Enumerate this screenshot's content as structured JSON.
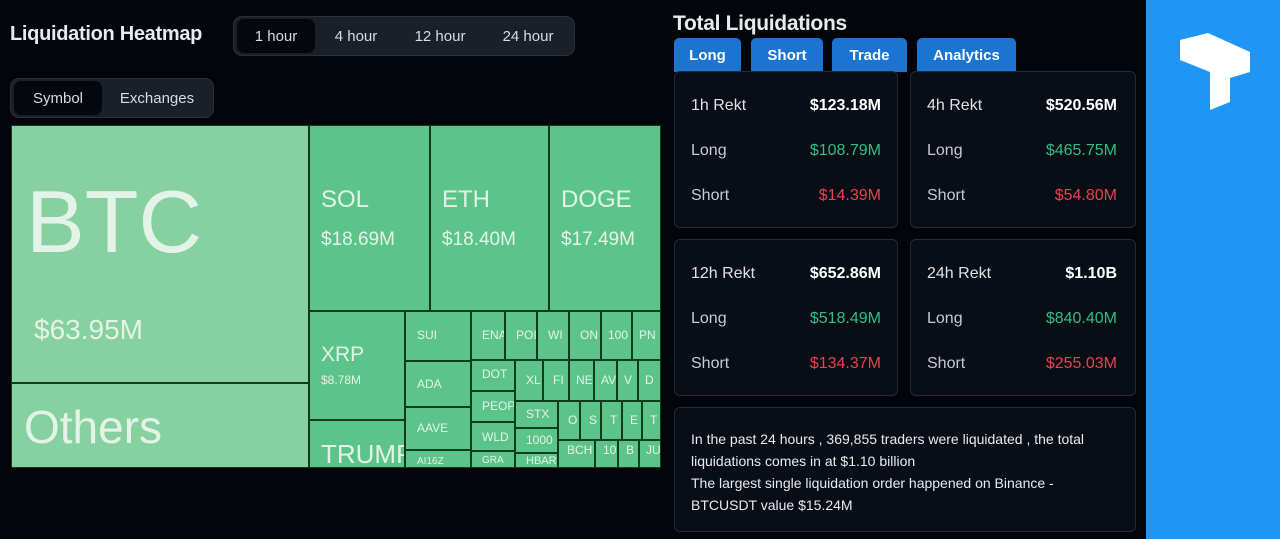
{
  "heatmap": {
    "title": "Liquidation Heatmap",
    "time_tabs": [
      "1 hour",
      "4 hour",
      "12 hour",
      "24 hour"
    ],
    "view_tabs": [
      "Symbol",
      "Exchanges"
    ],
    "tiles": [
      {
        "label": "BTC",
        "value": "$63.95M"
      },
      {
        "label": "Others"
      },
      {
        "label": "SOL",
        "value": "$18.69M"
      },
      {
        "label": "ETH",
        "value": "$18.40M"
      },
      {
        "label": "DOGE",
        "value": "$17.49M"
      },
      {
        "label": "XRP",
        "value": "$8.78M"
      },
      {
        "label": "TRUMP"
      },
      {
        "label": "SUI"
      },
      {
        "label": "ADA"
      },
      {
        "label": "AAVE"
      },
      {
        "label": "AI16Z"
      },
      {
        "label": "ENA"
      },
      {
        "label": "POI"
      },
      {
        "label": "WI"
      },
      {
        "label": "ON"
      },
      {
        "label": "100"
      },
      {
        "label": "PN"
      },
      {
        "label": "DOT"
      },
      {
        "label": "PEOP"
      },
      {
        "label": "WLD"
      },
      {
        "label": "GRA"
      },
      {
        "label": "XL"
      },
      {
        "label": "FI"
      },
      {
        "label": "NE"
      },
      {
        "label": "AV"
      },
      {
        "label": "V"
      },
      {
        "label": "D"
      },
      {
        "label": "STX"
      },
      {
        "label": "1000"
      },
      {
        "label": "HBAR"
      },
      {
        "label": "O"
      },
      {
        "label": "S"
      },
      {
        "label": "T"
      },
      {
        "label": "E"
      },
      {
        "label": "T"
      },
      {
        "label": "BCH"
      },
      {
        "label": "10"
      },
      {
        "label": "B"
      },
      {
        "label": "JU"
      }
    ]
  },
  "totals": {
    "title": "Total Liquidations",
    "tabs": [
      "Long",
      "Short",
      "Trade",
      "Analytics"
    ],
    "cards": [
      {
        "period": "1h Rekt",
        "total": "$123.18M",
        "long_label": "Long",
        "long": "$108.79M",
        "short_label": "Short",
        "short": "$14.39M"
      },
      {
        "period": "4h Rekt",
        "total": "$520.56M",
        "long_label": "Long",
        "long": "$465.75M",
        "short_label": "Short",
        "short": "$54.80M"
      },
      {
        "period": "12h Rekt",
        "total": "$652.86M",
        "long_label": "Long",
        "long": "$518.49M",
        "short_label": "Short",
        "short": "$134.37M"
      },
      {
        "period": "24h Rekt",
        "total": "$1.10B",
        "long_label": "Long",
        "long": "$840.40M",
        "short_label": "Short",
        "short": "$255.03M"
      }
    ],
    "summary": [
      "In the past 24 hours , 369,855 traders were liquidated , the total liquidations comes in at $1.10 billion",
      "The largest single liquidation order happened on Binance - BTCUSDT value $15.24M"
    ]
  }
}
